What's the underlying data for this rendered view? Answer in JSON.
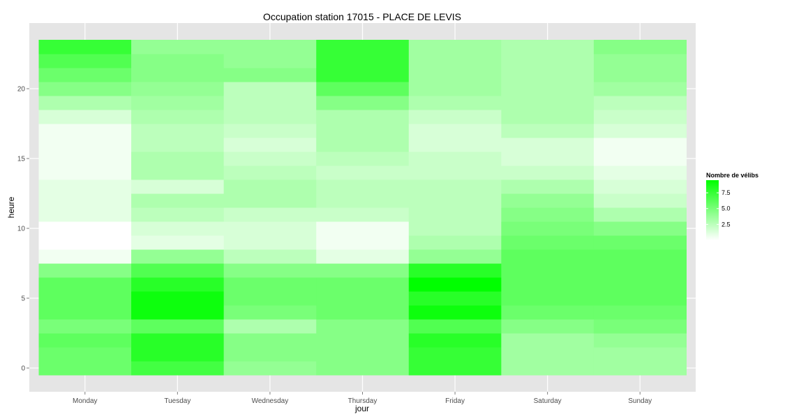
{
  "chart_data": {
    "type": "heatmap",
    "title": "Occupation station 17015 - PLACE DE LEVIS",
    "xlabel": "jour",
    "ylabel": "heure",
    "x_categories": [
      "Monday",
      "Tuesday",
      "Wednesday",
      "Thursday",
      "Friday",
      "Saturday",
      "Sunday"
    ],
    "y_values": [
      0,
      1,
      2,
      3,
      4,
      5,
      6,
      7,
      8,
      9,
      10,
      11,
      12,
      13,
      14,
      15,
      16,
      17,
      18,
      19,
      20,
      21,
      22,
      23
    ],
    "y_ticks": [
      0,
      5,
      10,
      15,
      20
    ],
    "ylim": [
      -0.5,
      23.5
    ],
    "values": [
      [
        5.5,
        7.0,
        4.0,
        4.5,
        7.5,
        3.5,
        3.5
      ],
      [
        5.5,
        8.0,
        4.5,
        4.5,
        7.5,
        3.5,
        3.5
      ],
      [
        6.0,
        8.0,
        4.5,
        4.5,
        8.0,
        3.5,
        4.0
      ],
      [
        5.0,
        6.0,
        3.0,
        4.5,
        6.5,
        4.5,
        5.0
      ],
      [
        6.0,
        9.0,
        5.0,
        5.5,
        9.0,
        5.5,
        5.5
      ],
      [
        6.0,
        9.0,
        5.5,
        5.5,
        8.0,
        6.0,
        6.0
      ],
      [
        6.0,
        8.0,
        5.5,
        5.5,
        9.5,
        6.0,
        6.0
      ],
      [
        4.5,
        6.5,
        4.5,
        4.5,
        8.0,
        6.0,
        6.0
      ],
      [
        0.5,
        4.0,
        2.5,
        1.0,
        4.0,
        6.0,
        6.0
      ],
      [
        0.0,
        1.0,
        1.5,
        0.5,
        3.0,
        5.5,
        5.5
      ],
      [
        0.0,
        1.5,
        1.5,
        0.5,
        2.5,
        5.0,
        4.5
      ],
      [
        1.0,
        2.5,
        2.0,
        2.0,
        2.5,
        4.5,
        3.0
      ],
      [
        1.0,
        3.0,
        3.0,
        2.5,
        2.5,
        4.0,
        2.0
      ],
      [
        1.0,
        1.5,
        3.0,
        2.5,
        2.5,
        3.0,
        1.5
      ],
      [
        0.5,
        3.0,
        2.5,
        2.0,
        2.0,
        2.0,
        1.0
      ],
      [
        0.5,
        3.0,
        2.0,
        2.5,
        2.0,
        1.5,
        0.5
      ],
      [
        0.5,
        2.5,
        1.5,
        3.0,
        1.5,
        1.5,
        0.5
      ],
      [
        0.5,
        2.5,
        2.0,
        3.0,
        1.5,
        2.5,
        1.5
      ],
      [
        1.5,
        3.0,
        2.5,
        3.0,
        2.0,
        3.0,
        2.0
      ],
      [
        3.0,
        3.5,
        2.5,
        4.5,
        3.0,
        3.0,
        2.5
      ],
      [
        4.5,
        4.0,
        2.5,
        6.0,
        3.5,
        3.0,
        3.5
      ],
      [
        5.5,
        4.5,
        4.5,
        7.5,
        3.5,
        3.0,
        4.0
      ],
      [
        6.5,
        4.5,
        4.0,
        7.5,
        3.5,
        3.0,
        4.0
      ],
      [
        7.5,
        4.0,
        4.0,
        7.5,
        3.5,
        3.0,
        4.5
      ]
    ],
    "color_scale": {
      "low_color": "#ffffff",
      "high_color": "#00ff00",
      "min": 0,
      "max": 9.5
    },
    "legend": {
      "title": "Nombre de vélibs",
      "ticks": [
        2.5,
        5.0,
        7.5
      ],
      "tick_labels": [
        "2.5",
        "5.0",
        "7.5"
      ],
      "placement": "right"
    },
    "panel_background": "#e5e5e5",
    "grid": true
  }
}
